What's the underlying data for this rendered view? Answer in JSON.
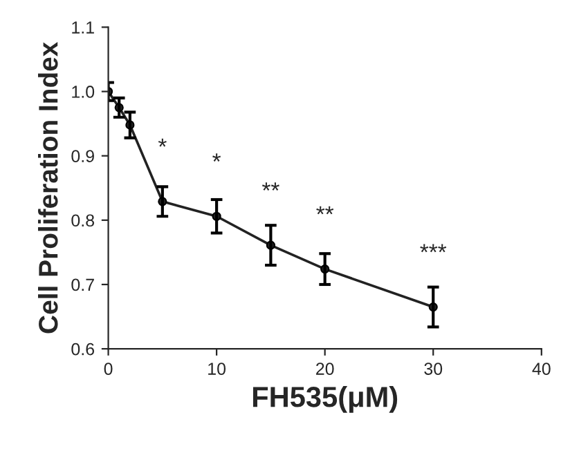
{
  "chart_data": {
    "type": "line",
    "xlabel": "FH535(μM)",
    "ylabel": "Cell Proliferation Index",
    "x": [
      0,
      1,
      2,
      5,
      10,
      15,
      20,
      30
    ],
    "series": [
      {
        "color": "#222222",
        "values": [
          1.0,
          0.975,
          0.948,
          0.829,
          0.806,
          0.761,
          0.724,
          0.665
        ],
        "errors": [
          0.014,
          0.015,
          0.02,
          0.023,
          0.026,
          0.031,
          0.024,
          0.031
        ]
      }
    ],
    "xlim": [
      0,
      40
    ],
    "xticks": [
      0,
      10,
      20,
      30,
      40
    ],
    "ylim": [
      0.6,
      1.1
    ],
    "yticks": [
      0.6,
      0.7,
      0.8,
      0.9,
      {
        "value": 1.0,
        "label": "1.0"
      },
      1.1
    ],
    "marker": "circle",
    "grid": false,
    "annotations": [
      {
        "text": "*",
        "x": 5,
        "y": 0.829
      },
      {
        "text": "*",
        "x": 10,
        "y": 0.806
      },
      {
        "text": "**",
        "x": 15,
        "y": 0.761
      },
      {
        "text": "**",
        "x": 20,
        "y": 0.724
      },
      {
        "text": "***",
        "x": 30,
        "y": 0.665
      }
    ]
  }
}
